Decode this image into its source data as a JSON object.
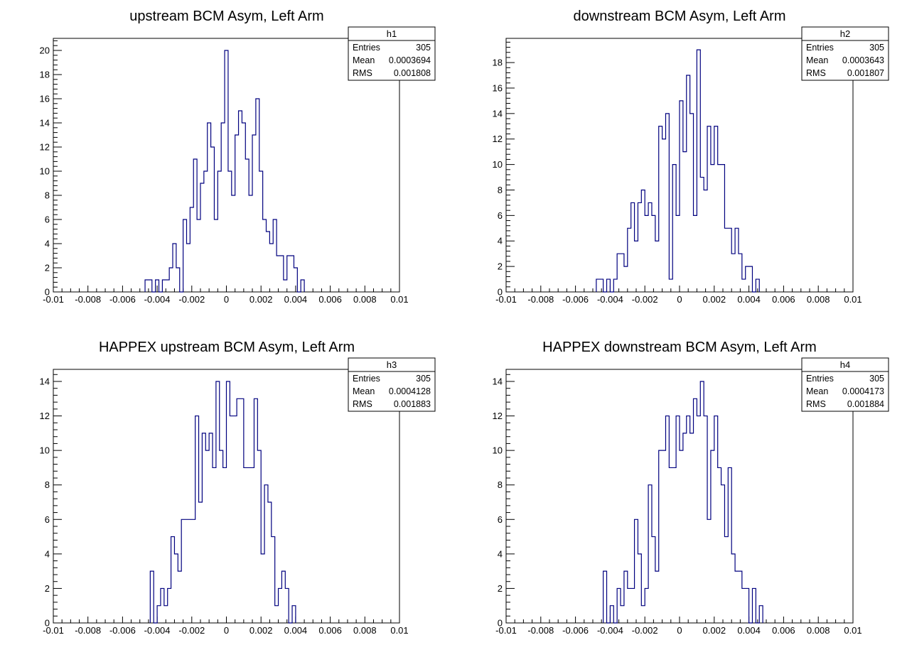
{
  "chart_data": [
    {
      "type": "histogram",
      "title": "upstream BCM Asym, Left Arm",
      "stats_name": "h1",
      "stats": [
        {
          "label": "Entries",
          "value": "305"
        },
        {
          "label": "Mean",
          "value": "0.0003694"
        },
        {
          "label": "RMS",
          "value": "0.001808"
        }
      ],
      "xlim": [
        -0.01,
        0.01
      ],
      "ylim": [
        0,
        21
      ],
      "yticks": [
        0,
        2,
        4,
        6,
        8,
        10,
        12,
        14,
        16,
        18,
        20
      ],
      "xtick_labels": [
        "-0.01",
        "-0.008",
        "-0.006",
        "-0.004",
        "-0.002",
        "0",
        "0.002",
        "0.004",
        "0.006",
        "0.008",
        "0.01"
      ],
      "ytick_labels": [
        "0",
        "2",
        "4",
        "6",
        "8",
        "10",
        "12",
        "14",
        "16",
        "18",
        "20"
      ],
      "line_color": "#00007f",
      "bin_width": 0.0002,
      "x_start": -0.0047,
      "counts": [
        1,
        1,
        0,
        1,
        0,
        1,
        1,
        2,
        4,
        2,
        0,
        6,
        4,
        7,
        11,
        6,
        9,
        10,
        14,
        12,
        6,
        10,
        14,
        20,
        10,
        8,
        13,
        15,
        14,
        11,
        8,
        13,
        16,
        10,
        6,
        5,
        4,
        6,
        3,
        3,
        1,
        3,
        3,
        2,
        0,
        1
      ]
    },
    {
      "type": "histogram",
      "title": "downstream BCM Asym, Left Arm",
      "stats_name": "h2",
      "stats": [
        {
          "label": "Entries",
          "value": "305"
        },
        {
          "label": "Mean",
          "value": "0.0003643"
        },
        {
          "label": "RMS",
          "value": "0.001807"
        }
      ],
      "xlim": [
        -0.01,
        0.01
      ],
      "ylim": [
        0,
        19.9
      ],
      "yticks": [
        0,
        2,
        4,
        6,
        8,
        10,
        12,
        14,
        16,
        18
      ],
      "xtick_labels": [
        "-0.01",
        "-0.008",
        "-0.006",
        "-0.004",
        "-0.002",
        "0",
        "0.002",
        "0.004",
        "0.006",
        "0.008",
        "0.01"
      ],
      "ytick_labels": [
        "0",
        "2",
        "4",
        "6",
        "8",
        "10",
        "12",
        "14",
        "16",
        "18"
      ],
      "line_color": "#00007f",
      "bin_width": 0.0002,
      "x_start": -0.0048,
      "counts": [
        1,
        1,
        0,
        1,
        0,
        1,
        3,
        3,
        2,
        5,
        7,
        4,
        7,
        8,
        6,
        7,
        6,
        4,
        13,
        12,
        14,
        1,
        10,
        6,
        15,
        11,
        17,
        14,
        6,
        19,
        9,
        8,
        13,
        10,
        13,
        10,
        10,
        5,
        5,
        3,
        5,
        3,
        1,
        2,
        2,
        0,
        1
      ]
    },
    {
      "type": "histogram",
      "title": "HAPPEX upstream BCM Asym, Left Arm",
      "stats_name": "h3",
      "stats": [
        {
          "label": "Entries",
          "value": "305"
        },
        {
          "label": "Mean",
          "value": "0.0004128"
        },
        {
          "label": "RMS",
          "value": "0.001883"
        }
      ],
      "xlim": [
        -0.01,
        0.01
      ],
      "ylim": [
        0,
        14.7
      ],
      "yticks": [
        0,
        2,
        4,
        6,
        8,
        10,
        12,
        14
      ],
      "xtick_labels": [
        "-0.01",
        "-0.008",
        "-0.006",
        "-0.004",
        "-0.002",
        "0",
        "0.002",
        "0.004",
        "0.006",
        "0.008",
        "0.01"
      ],
      "ytick_labels": [
        "0",
        "2",
        "4",
        "6",
        "8",
        "10",
        "12",
        "14"
      ],
      "line_color": "#00007f",
      "bin_width": 0.0002,
      "x_start": -0.0044,
      "counts": [
        3,
        0,
        1,
        2,
        1,
        2,
        5,
        4,
        3,
        6,
        6,
        6,
        6,
        12,
        7,
        11,
        10,
        11,
        9,
        14,
        10,
        9,
        14,
        12,
        12,
        13,
        13,
        9,
        9,
        9,
        13,
        10,
        4,
        8,
        7,
        5,
        1,
        2,
        3,
        2,
        0,
        1
      ]
    },
    {
      "type": "histogram",
      "title": "HAPPEX downstream BCM Asym, Left Arm",
      "stats_name": "h4",
      "stats": [
        {
          "label": "Entries",
          "value": "305"
        },
        {
          "label": "Mean",
          "value": "0.0004173"
        },
        {
          "label": "RMS",
          "value": "0.001884"
        }
      ],
      "xlim": [
        -0.01,
        0.01
      ],
      "ylim": [
        0,
        14.7
      ],
      "yticks": [
        0,
        2,
        4,
        6,
        8,
        10,
        12,
        14
      ],
      "xtick_labels": [
        "-0.01",
        "-0.008",
        "-0.006",
        "-0.004",
        "-0.002",
        "0",
        "0.002",
        "0.004",
        "0.006",
        "0.008",
        "0.01"
      ],
      "ytick_labels": [
        "0",
        "2",
        "4",
        "6",
        "8",
        "10",
        "12",
        "14"
      ],
      "line_color": "#00007f",
      "bin_width": 0.0002,
      "x_start": -0.0044,
      "counts": [
        3,
        0,
        1,
        0,
        2,
        1,
        3,
        2,
        2,
        6,
        4,
        1,
        2,
        8,
        5,
        3,
        10,
        10,
        12,
        9,
        9,
        12,
        10,
        11,
        12,
        11,
        13,
        12,
        14,
        12,
        6,
        10,
        12,
        9,
        8,
        5,
        9,
        4,
        3,
        3,
        2,
        2,
        0,
        2,
        0,
        1
      ]
    }
  ]
}
